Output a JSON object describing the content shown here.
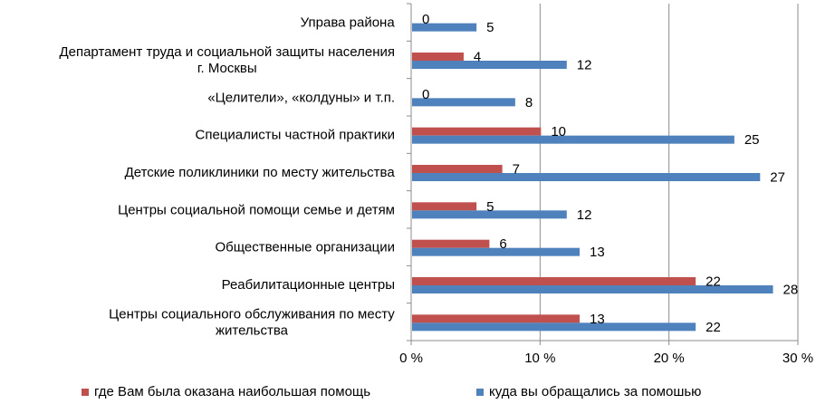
{
  "chart_data": {
    "type": "bar",
    "orientation": "horizontal",
    "categories": [
      "Управа района",
      "Департамент труда и социальной защиты населения г. Москвы",
      "«Целители», «колдуны» и т.п.",
      "Специалисты частной практики",
      "Детские поликлиники по месту жительства",
      "Центры социальной помощи семье и детям",
      "Общественные организации",
      "Реабилитационные центры",
      "Центры социального обслуживания по месту жительства"
    ],
    "category_label_lines": [
      [
        "Управа района"
      ],
      [
        "Департамент труда и социальной защиты населения",
        "г. Москвы"
      ],
      [
        "«Целители», «колдуны» и т.п."
      ],
      [
        "Специалисты частной практики"
      ],
      [
        "Детские поликлиники по месту жительства"
      ],
      [
        "Центры социальной помощи семье и детям"
      ],
      [
        "Общественные организации"
      ],
      [
        "Реабилитационные центры"
      ],
      [
        "Центры социального обслуживания по месту",
        "жительства"
      ]
    ],
    "series": [
      {
        "name": "где Вам была оказана наибольшая помощь",
        "color": "#c0504d",
        "values": [
          0,
          4,
          0,
          10,
          7,
          5,
          6,
          22,
          13
        ]
      },
      {
        "name": "куда вы обращались за помошью",
        "color": "#4f81bd",
        "values": [
          5,
          12,
          8,
          25,
          27,
          12,
          13,
          28,
          22
        ]
      }
    ],
    "xlim": [
      0,
      30
    ],
    "xticks": [
      0,
      10,
      20,
      30
    ],
    "xtick_labels": [
      "0 %",
      "10 %",
      "20 %",
      "30 %"
    ],
    "grid": "vertical",
    "legend_position": "bottom"
  }
}
